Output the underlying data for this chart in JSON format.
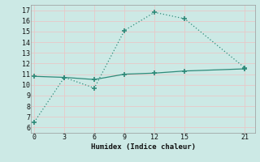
{
  "line1_x": [
    0,
    3,
    6,
    9,
    12,
    15,
    21
  ],
  "line1_y": [
    6.5,
    10.7,
    9.7,
    15.1,
    16.8,
    16.2,
    11.6
  ],
  "line2_x": [
    0,
    3,
    6,
    9,
    12,
    15,
    21
  ],
  "line2_y": [
    10.8,
    10.7,
    10.5,
    11.0,
    11.1,
    11.3,
    11.5
  ],
  "line_color": "#2e8b7a",
  "bg_color": "#cce9e5",
  "grid_color": "#e8c8c8",
  "xlabel": "Humidex (Indice chaleur)",
  "xticks": [
    0,
    3,
    6,
    9,
    12,
    15,
    21
  ],
  "yticks": [
    6,
    7,
    8,
    9,
    10,
    11,
    12,
    13,
    14,
    15,
    16,
    17
  ],
  "ylim": [
    5.5,
    17.5
  ],
  "xlim": [
    -0.3,
    22.0
  ]
}
